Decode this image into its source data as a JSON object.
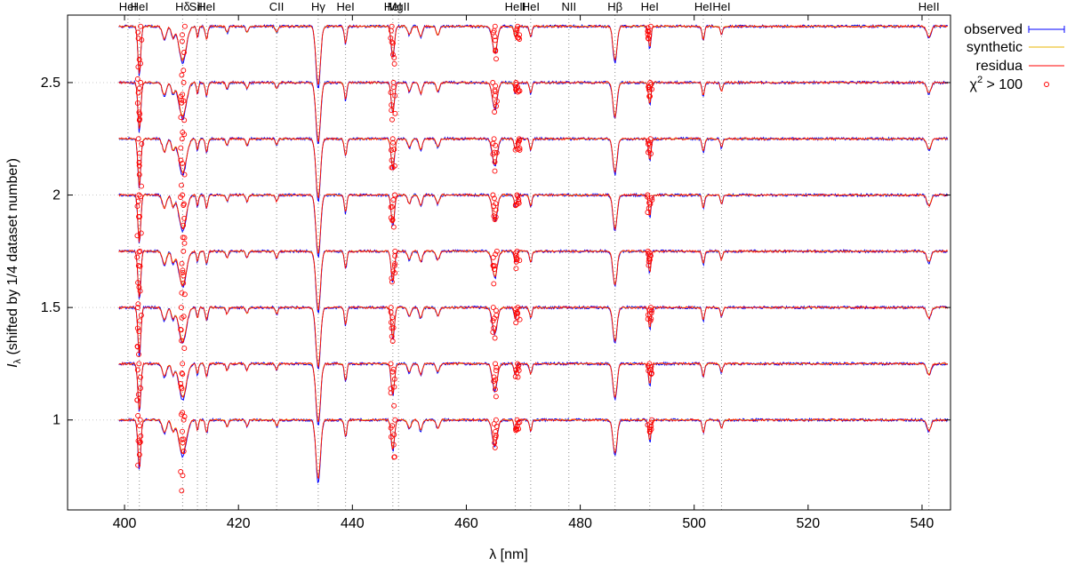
{
  "chart_data": {
    "type": "line",
    "xlabel": "λ [nm]",
    "ylabel_main": "I",
    "ylabel_sub": "λ",
    "ylabel_rest": " (shifted by 1/4 dataset number)",
    "xlim": [
      390,
      545
    ],
    "ylim": [
      0.6,
      2.8
    ],
    "xticks": [
      400,
      420,
      440,
      460,
      480,
      500,
      520,
      540
    ],
    "xtick_labels": [
      "400",
      "420",
      "440",
      "460",
      "480",
      "500",
      "520",
      "540"
    ],
    "yticks": [
      1,
      1.5,
      2,
      2.5
    ],
    "ytick_labels": [
      "1",
      "1.5",
      "2",
      "2.5"
    ],
    "grid": true,
    "legend_position": "outside-right",
    "x_range_data": [
      399,
      544.5
    ],
    "offsets": [
      1.0,
      1.25,
      1.5,
      1.75,
      2.0,
      2.25,
      2.5,
      2.75
    ],
    "line_markers": [
      {
        "x": 400.6,
        "label": "HeI"
      },
      {
        "x": 402.6,
        "label": "HeI"
      },
      {
        "x": 410.2,
        "label": "Hδ"
      },
      {
        "x": 412.8,
        "label": "SiII"
      },
      {
        "x": 414.4,
        "label": "HeI"
      },
      {
        "x": 426.7,
        "label": "CII"
      },
      {
        "x": 434.0,
        "label": "Hγ"
      },
      {
        "x": 438.8,
        "label": "HeI"
      },
      {
        "x": 447.1,
        "label": "HeI"
      },
      {
        "x": 448.1,
        "label": "MgII"
      },
      {
        "x": 468.6,
        "label": "HeII"
      },
      {
        "x": 471.3,
        "label": "HeI"
      },
      {
        "x": 478.0,
        "label": "NII"
      },
      {
        "x": 486.1,
        "label": "Hβ"
      },
      {
        "x": 492.2,
        "label": "HeI"
      },
      {
        "x": 501.6,
        "label": "HeI"
      },
      {
        "x": 504.8,
        "label": "HeI"
      },
      {
        "x": 541.2,
        "label": "HeII"
      }
    ],
    "absorption_lines": [
      {
        "x": 402.6,
        "depth": 0.22,
        "width": 0.35
      },
      {
        "x": 407.0,
        "depth": 0.06,
        "width": 0.5
      },
      {
        "x": 408.5,
        "depth": 0.05,
        "width": 0.4
      },
      {
        "x": 410.2,
        "depth": 0.16,
        "width": 0.9
      },
      {
        "x": 412.8,
        "depth": 0.05,
        "width": 0.25
      },
      {
        "x": 414.4,
        "depth": 0.06,
        "width": 0.3
      },
      {
        "x": 418.0,
        "depth": 0.03,
        "width": 0.3
      },
      {
        "x": 421.5,
        "depth": 0.03,
        "width": 0.3
      },
      {
        "x": 426.7,
        "depth": 0.03,
        "width": 0.3
      },
      {
        "x": 434.0,
        "depth": 0.28,
        "width": 0.55
      },
      {
        "x": 438.8,
        "depth": 0.08,
        "width": 0.3
      },
      {
        "x": 447.1,
        "depth": 0.14,
        "width": 0.4
      },
      {
        "x": 450.0,
        "depth": 0.04,
        "width": 0.4
      },
      {
        "x": 452.0,
        "depth": 0.05,
        "width": 0.4
      },
      {
        "x": 455.0,
        "depth": 0.04,
        "width": 0.4
      },
      {
        "x": 465.0,
        "depth": 0.12,
        "width": 0.6
      },
      {
        "x": 468.6,
        "depth": 0.05,
        "width": 0.3
      },
      {
        "x": 471.3,
        "depth": 0.05,
        "width": 0.3
      },
      {
        "x": 486.1,
        "depth": 0.16,
        "width": 0.5
      },
      {
        "x": 492.2,
        "depth": 0.1,
        "width": 0.3
      },
      {
        "x": 501.6,
        "depth": 0.06,
        "width": 0.3
      },
      {
        "x": 504.8,
        "depth": 0.04,
        "width": 0.3
      },
      {
        "x": 541.2,
        "depth": 0.05,
        "width": 0.5
      }
    ],
    "outlier_lines": [
      {
        "x": 402.6,
        "depth": 0.2
      },
      {
        "x": 410.2,
        "depth": 0.3
      },
      {
        "x": 447.1,
        "depth": 0.15
      },
      {
        "x": 465.0,
        "depth": 0.12
      },
      {
        "x": 469.0,
        "depth": 0.06
      },
      {
        "x": 492.2,
        "depth": 0.06
      }
    ],
    "series": [
      {
        "name": "observed",
        "color": "#0000ff"
      },
      {
        "name": "synthetic",
        "color": "#e8b400"
      },
      {
        "name": "residua",
        "color": "#ff0000"
      },
      {
        "name": "χ² > 100",
        "color": "#ff0000"
      }
    ],
    "legend": {
      "observed": "observed",
      "synthetic": "synthetic",
      "residua": "residua",
      "chi_prefix": "χ",
      "chi_sup": "2",
      "chi_suffix": " > 100"
    }
  }
}
